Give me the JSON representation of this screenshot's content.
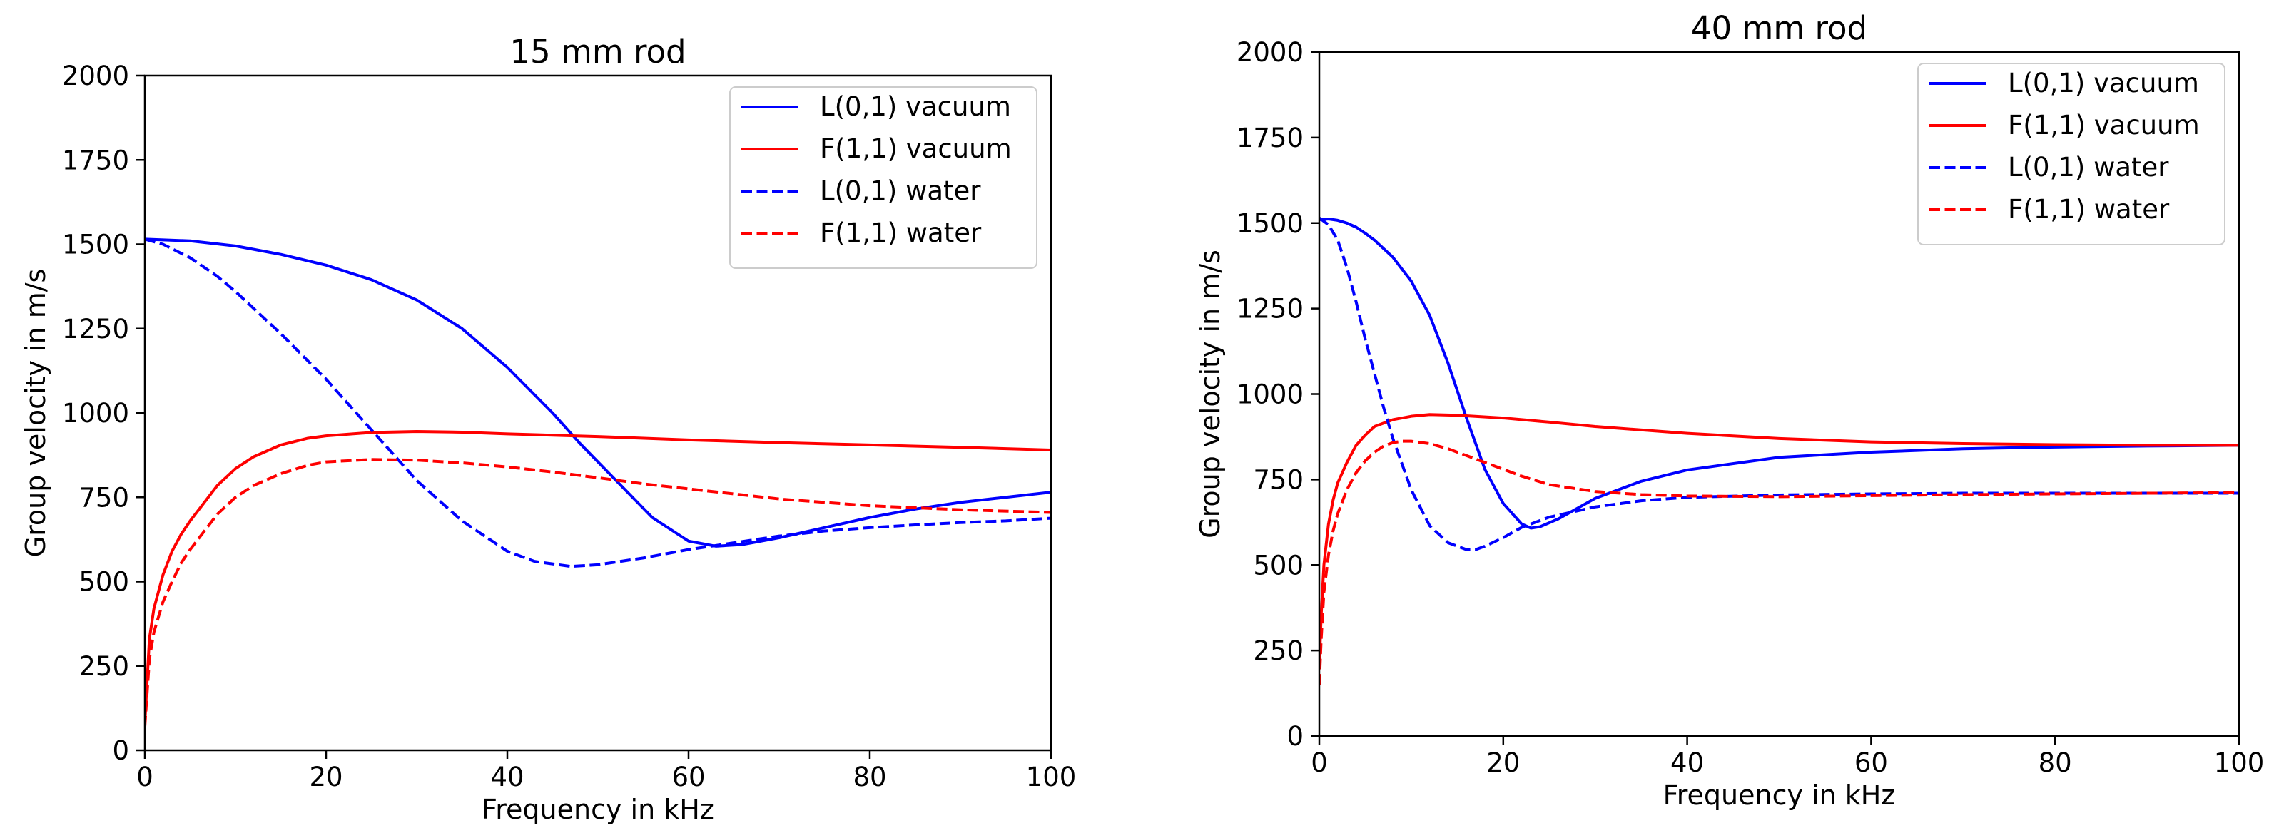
{
  "chart_data": [
    {
      "type": "line",
      "title": "15 mm rod",
      "xlabel": "Frequency in kHz",
      "ylabel": "Group velocity in m/s",
      "xlim": [
        0,
        100
      ],
      "ylim": [
        0,
        2000
      ],
      "xticks": [
        0,
        20,
        40,
        60,
        80,
        100
      ],
      "yticks": [
        0,
        250,
        500,
        750,
        1000,
        1250,
        1500,
        1750,
        2000
      ],
      "legend_position": "upper right",
      "series": [
        {
          "name": "L(0,1) vacuum",
          "color": "#0000ff",
          "style": "solid",
          "x": [
            0,
            5,
            10,
            15,
            20,
            25,
            30,
            35,
            40,
            45,
            48,
            52,
            56,
            60,
            63,
            66,
            70,
            75,
            80,
            85,
            90,
            95,
            100
          ],
          "y": [
            1515,
            1510,
            1495,
            1470,
            1438,
            1395,
            1335,
            1250,
            1135,
            1000,
            910,
            800,
            690,
            620,
            605,
            610,
            630,
            660,
            690,
            715,
            735,
            750,
            765
          ]
        },
        {
          "name": "F(1,1) vacuum",
          "color": "#ff0000",
          "style": "solid",
          "x": [
            0,
            0.5,
            1,
            2,
            3,
            4,
            5,
            6,
            8,
            10,
            12,
            15,
            18,
            20,
            25,
            30,
            35,
            40,
            50,
            60,
            70,
            80,
            90,
            100
          ],
          "y": [
            80,
            330,
            420,
            520,
            590,
            640,
            680,
            715,
            785,
            835,
            870,
            905,
            925,
            932,
            942,
            945,
            943,
            938,
            930,
            920,
            912,
            905,
            898,
            890
          ]
        },
        {
          "name": "L(0,1) water",
          "color": "#0000ff",
          "style": "dashed",
          "x": [
            0,
            2,
            5,
            8,
            10,
            15,
            20,
            25,
            30,
            35,
            40,
            43,
            47,
            50,
            55,
            60,
            65,
            70,
            75,
            80,
            85,
            90,
            95,
            100
          ],
          "y": [
            1515,
            1500,
            1460,
            1405,
            1360,
            1235,
            1100,
            950,
            800,
            680,
            590,
            560,
            545,
            550,
            570,
            595,
            615,
            635,
            650,
            660,
            668,
            675,
            680,
            688
          ]
        },
        {
          "name": "F(1,1) water",
          "color": "#ff0000",
          "style": "dashed",
          "x": [
            0,
            0.5,
            1,
            2,
            3,
            4,
            5,
            6,
            8,
            10,
            12,
            15,
            18,
            20,
            25,
            30,
            35,
            40,
            45,
            50,
            55,
            60,
            65,
            70,
            80,
            90,
            100
          ],
          "y": [
            70,
            270,
            350,
            440,
            500,
            555,
            595,
            630,
            700,
            750,
            785,
            820,
            845,
            855,
            862,
            860,
            852,
            840,
            825,
            808,
            790,
            775,
            760,
            745,
            725,
            713,
            705
          ]
        }
      ]
    },
    {
      "type": "line",
      "title": "40 mm rod",
      "xlabel": "Frequency in kHz",
      "ylabel": "Group velocity in m/s",
      "xlim": [
        0,
        100
      ],
      "ylim": [
        0,
        2000
      ],
      "xticks": [
        0,
        20,
        40,
        60,
        80,
        100
      ],
      "yticks": [
        0,
        250,
        500,
        750,
        1000,
        1250,
        1500,
        1750,
        2000
      ],
      "legend_position": "upper right",
      "series": [
        {
          "name": "L(0,1) vacuum",
          "color": "#0000ff",
          "style": "solid",
          "x": [
            0,
            1,
            2,
            3,
            4,
            5,
            6,
            8,
            10,
            12,
            14,
            16,
            18,
            20,
            22,
            23,
            24,
            26,
            28,
            30,
            35,
            40,
            50,
            60,
            70,
            80,
            90,
            100
          ],
          "y": [
            1510,
            1512,
            1508,
            1500,
            1488,
            1470,
            1450,
            1400,
            1330,
            1230,
            1090,
            930,
            780,
            680,
            620,
            608,
            612,
            635,
            665,
            695,
            745,
            778,
            815,
            830,
            840,
            845,
            848,
            850
          ]
        },
        {
          "name": "F(1,1) vacuum",
          "color": "#ff0000",
          "style": "solid",
          "x": [
            0,
            0.2,
            0.5,
            1,
            1.5,
            2,
            3,
            4,
            5,
            6,
            8,
            10,
            12,
            15,
            20,
            25,
            30,
            40,
            50,
            60,
            70,
            80,
            90,
            100
          ],
          "y": [
            200,
            350,
            500,
            620,
            690,
            740,
            800,
            850,
            880,
            905,
            925,
            935,
            940,
            938,
            930,
            918,
            905,
            885,
            870,
            860,
            855,
            852,
            850,
            850
          ]
        },
        {
          "name": "L(0,1) water",
          "color": "#0000ff",
          "style": "dashed",
          "x": [
            0,
            1,
            2,
            3,
            4,
            5,
            6,
            7,
            8,
            10,
            12,
            14,
            16,
            17,
            18,
            20,
            22,
            25,
            30,
            35,
            40,
            50,
            60,
            70,
            80,
            90,
            100
          ],
          "y": [
            1515,
            1495,
            1450,
            1370,
            1270,
            1160,
            1060,
            960,
            870,
            720,
            615,
            565,
            545,
            545,
            555,
            580,
            610,
            640,
            670,
            688,
            698,
            705,
            708,
            710,
            710,
            710,
            710
          ]
        },
        {
          "name": "F(1,1) water",
          "color": "#ff0000",
          "style": "dashed",
          "x": [
            0,
            0.2,
            0.5,
            1,
            1.5,
            2,
            3,
            4,
            5,
            6,
            7,
            8,
            9,
            10,
            12,
            14,
            16,
            18,
            20,
            22,
            25,
            30,
            35,
            40,
            50,
            60,
            70,
            80,
            90,
            100
          ],
          "y": [
            150,
            280,
            420,
            530,
            600,
            650,
            720,
            770,
            805,
            830,
            848,
            858,
            862,
            862,
            855,
            840,
            820,
            800,
            780,
            760,
            735,
            715,
            706,
            702,
            700,
            703,
            706,
            708,
            710,
            712
          ]
        }
      ]
    }
  ]
}
